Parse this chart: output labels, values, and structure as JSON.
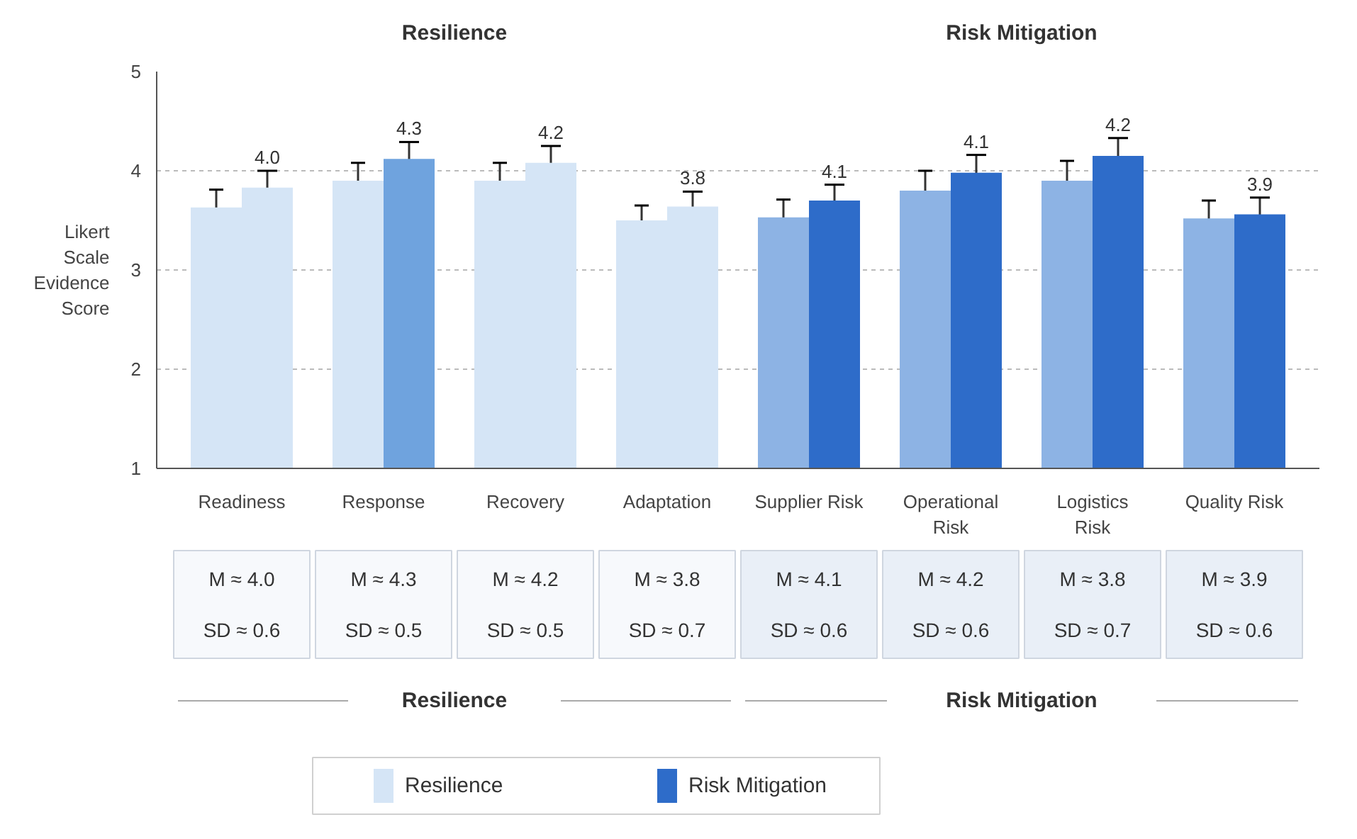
{
  "chart_data": {
    "type": "bar",
    "categories": [
      "Readiness",
      "Response",
      "Recovery",
      "Adaptation",
      "Supplier Risk",
      "Operational Risk",
      "Logistics Risk",
      "Quality Risk"
    ],
    "ylabel": "Likert Scale Evidence Score",
    "ylim": [
      1,
      5
    ],
    "yticks": [
      1,
      2,
      3,
      4,
      5
    ],
    "grid": "y",
    "legend": "bottom",
    "series": [
      {
        "colors": [
          "#d5e5f6",
          "#d5e5f6",
          "#d5e5f6",
          "#d5e5f6",
          "#8db3e4",
          "#8db3e4",
          "#8db3e4",
          "#8db3e4"
        ],
        "values": [
          3.63,
          3.9,
          3.9,
          3.5,
          3.53,
          3.8,
          3.9,
          3.52
        ],
        "errors": [
          0.18,
          0.18,
          0.18,
          0.15,
          0.18,
          0.2,
          0.2,
          0.18
        ]
      },
      {
        "name": "Resilience",
        "color": "#d5e5f6",
        "colors": [
          "#d5e5f6",
          "#6fa3de",
          "#d5e5f6",
          "#d5e5f6",
          null,
          null,
          null,
          null
        ],
        "values": [
          3.83,
          4.12,
          4.08,
          3.64,
          null,
          null,
          null,
          null
        ],
        "errors": [
          0.17,
          0.17,
          0.17,
          0.15,
          null,
          null,
          null,
          null
        ]
      },
      {
        "name": "Risk Mitigation",
        "color": "#2e6cc9",
        "values": [
          null,
          null,
          null,
          null,
          3.7,
          3.98,
          4.15,
          3.56
        ],
        "errors": [
          null,
          null,
          null,
          null,
          0.16,
          0.18,
          0.18,
          0.17
        ]
      }
    ],
    "annotations": [
      "Resilience",
      "Risk Mitigation",
      "M ≈ 4.0",
      "SD ≈ 0.6",
      "M ≈ 4.3",
      "SD ≈ 0.5",
      "M ≈ 4.2",
      "SD ≈ 0.5",
      "M ≈ 3.8",
      "SD ≈ 0.7",
      "M ≈ 4.1",
      "SD ≈ 0.6",
      "M ≈ 4.2",
      "SD ≈ 0.6",
      "M ≈ 3.8",
      "SD ≈ 0.7",
      "M ≈ 3.9",
      "SD ≈ 0.6",
      "Resilience",
      "Risk Mitigation",
      "4.0",
      "4.3",
      "4.2",
      "3.8",
      "4.1",
      "4.1",
      "4.2",
      "3.9"
    ]
  }
}
